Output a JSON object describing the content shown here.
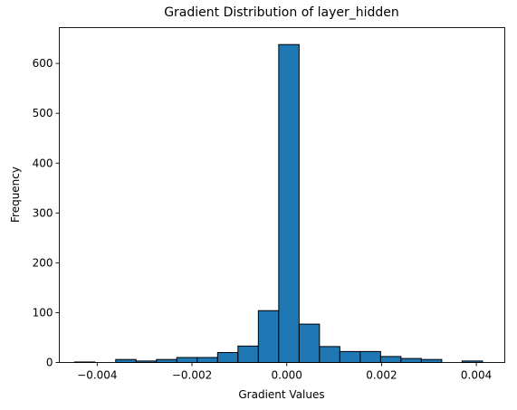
{
  "chart_data": {
    "type": "bar",
    "title": "Gradient Distribution of layer_hidden",
    "xlabel": "Gradient Values",
    "ylabel": "Frequency",
    "xlim": [
      -0.0048,
      0.0046
    ],
    "ylim": [
      0,
      672
    ],
    "x_ticks": [
      -0.004,
      -0.002,
      0.0,
      0.002,
      0.004
    ],
    "x_tick_labels": [
      "−0.004",
      "−0.002",
      "0.000",
      "0.002",
      "0.004"
    ],
    "y_ticks": [
      0,
      100,
      200,
      300,
      400,
      500,
      600
    ],
    "y_tick_labels": [
      "0",
      "100",
      "200",
      "300",
      "400",
      "500",
      "600"
    ],
    "bin_edges": [
      -0.00448,
      -0.00405,
      -0.00361,
      -0.00318,
      -0.00275,
      -0.00232,
      -0.00189,
      -0.00146,
      -0.00103,
      -0.0006,
      -0.00017,
      0.00026,
      0.00069,
      0.00112,
      0.00155,
      0.00198,
      0.00241,
      0.00284,
      0.00327,
      0.0037,
      0.00413
    ],
    "values": [
      1,
      0,
      6,
      3,
      6,
      10,
      10,
      20,
      33,
      104,
      638,
      77,
      32,
      22,
      22,
      12,
      8,
      6,
      0,
      3
    ],
    "bar_color": "#1f77b4",
    "edge_color": "#000000",
    "grid": false,
    "legend": "none"
  }
}
